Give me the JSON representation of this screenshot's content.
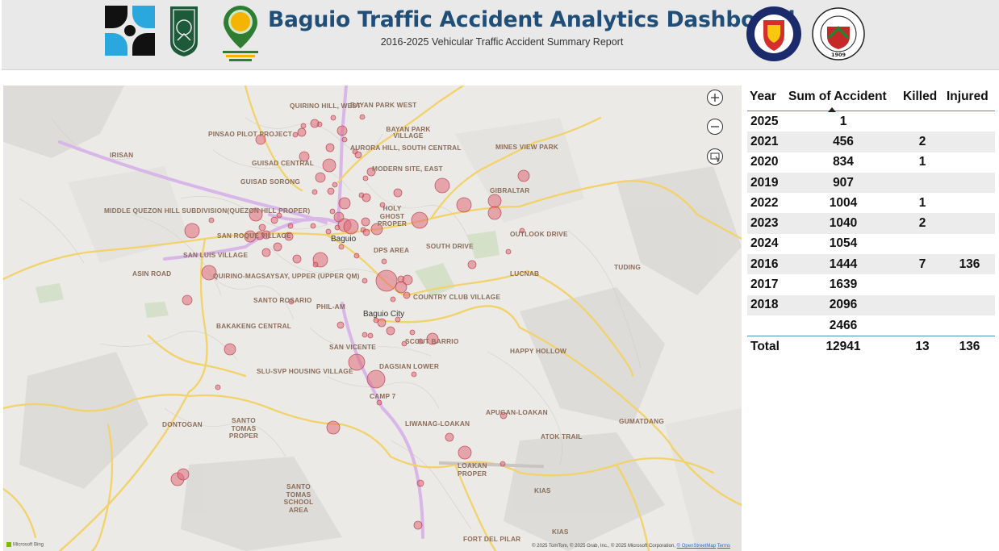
{
  "header": {
    "title": "Baguio Traffic Accident Analytics Dashboard",
    "subtitle": "2016-2025 Vehicular Traffic Accident Summary Report",
    "logos": [
      "bagong-pilipinas-logo",
      "university-seal-logo",
      "gis-map-pin-logo",
      "baguio-city-police-office-logo",
      "city-of-baguio-seal"
    ],
    "seal_year": "1909",
    "seal_text": "CITY OF BAGUIO",
    "police_text": "BAGUIO CITY POLICE OFFICE",
    "police_inner": "BAGUIO",
    "police_bottom": "POLICE STATION 8"
  },
  "map": {
    "provider_label": "Microsoft Bing",
    "attribution_prefix": "© 2025 TomTom, © 2025 Grab, Inc., © 2025 Microsoft Corporation,",
    "attribution_osm": "© OpenStreetMap",
    "attribution_terms": "Terms",
    "zoom_in_icon": "plus-circle-icon",
    "zoom_out_icon": "minus-circle-icon",
    "select_icon": "lasso-select-icon",
    "places": [
      "BAYAN PARK WEST",
      "QUIRINO HILL, WEST",
      "PINSAO PILOT PROJECT",
      "BAYAN PARK VILLAGE",
      "IRISAN",
      "AURORA HILL, SOUTH CENTRAL",
      "MINES VIEW PARK",
      "GUISAD CENTRAL",
      "MODERN SITE, EAST",
      "GUISAD SORONG",
      "GIBRALTAR",
      "HOLY GHOST PROPER",
      "MIDDLE QUEZON HILL SUBDIVISION(QUEZON HILL PROPER)",
      "SAN ROQUE VILLAGE",
      "OUTLOOK DRIVE",
      "SOUTH DRIVE",
      "SAN LUIS VILLAGE",
      "DPS AREA",
      "LUCNAB",
      "TUDING",
      "ASIN ROAD",
      "QUIRINO-MAGSAYSAY, UPPER (UPPER QM)",
      "COUNTRY CLUB VILLAGE",
      "SANTO ROSARIO",
      "PHIL-AM",
      "BAKAKENG CENTRAL",
      "SCOUT BARRIO",
      "SAN VICENTE",
      "HAPPY HOLLOW",
      "SLU-SVP HOUSING VILLAGE",
      "DAGSIAN LOWER",
      "CAMP 7",
      "APUGAN-LOAKAN",
      "DONTOGAN",
      "SANTO TOMAS PROPER",
      "LIWANAG-LOAKAN",
      "ATOK TRAIL",
      "GUMATDANG",
      "LOAKAN PROPER",
      "SANTO TOMAS SCHOOL AREA",
      "KIAS",
      "FORT DEL PILAR",
      "KIAS"
    ],
    "cities": [
      "Baguio",
      "Baguio City"
    ]
  },
  "table": {
    "columns": [
      "Year",
      "Sum of Accident",
      "Killed",
      "Injured"
    ],
    "sorted_column": "Sum of Accident",
    "rows": [
      {
        "year": "2025",
        "accidents": "1",
        "killed": "",
        "injured": ""
      },
      {
        "year": "2021",
        "accidents": "456",
        "killed": "2",
        "injured": ""
      },
      {
        "year": "2020",
        "accidents": "834",
        "killed": "1",
        "injured": ""
      },
      {
        "year": "2019",
        "accidents": "907",
        "killed": "",
        "injured": ""
      },
      {
        "year": "2022",
        "accidents": "1004",
        "killed": "1",
        "injured": ""
      },
      {
        "year": "2023",
        "accidents": "1040",
        "killed": "2",
        "injured": ""
      },
      {
        "year": "2024",
        "accidents": "1054",
        "killed": "",
        "injured": ""
      },
      {
        "year": "2016",
        "accidents": "1444",
        "killed": "7",
        "injured": "136"
      },
      {
        "year": "2017",
        "accidents": "1639",
        "killed": "",
        "injured": ""
      },
      {
        "year": "2018",
        "accidents": "2096",
        "killed": "",
        "injured": ""
      },
      {
        "year": "",
        "accidents": "2466",
        "killed": "",
        "injured": ""
      }
    ],
    "total": {
      "label": "Total",
      "accidents": "12941",
      "killed": "13",
      "injured": "136"
    }
  },
  "colors": {
    "title": "#1f4e79",
    "bubble_fill": "#e06a78",
    "bubble_stroke": "#b83a4a",
    "major_road": "#f3d36a",
    "highway": "#d8b4e6",
    "table_rule": "#4a8fb5"
  }
}
